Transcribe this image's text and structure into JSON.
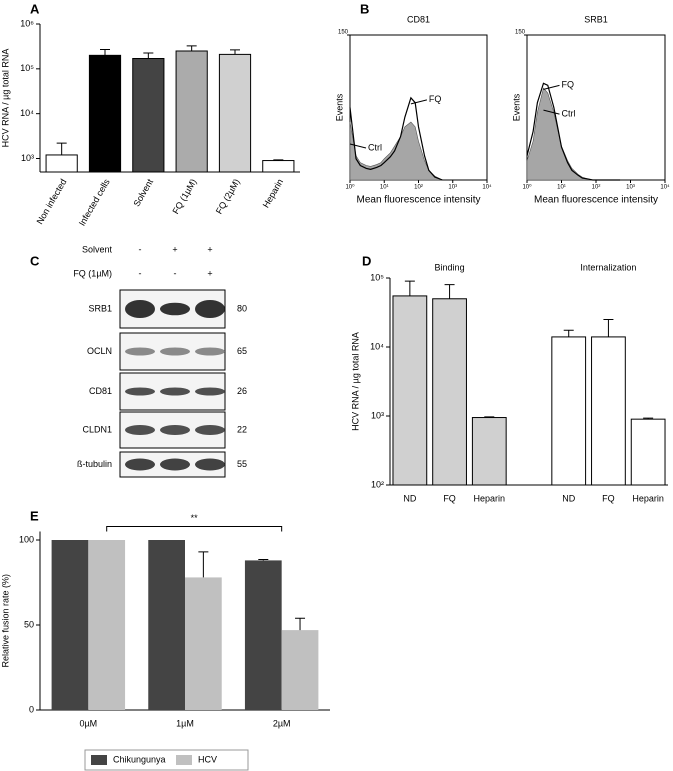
{
  "chart_data": [
    {
      "type": "bar",
      "panel": "A",
      "ylabel": "HCV RNA / µg total RNA",
      "log_y": true,
      "ylim": [
        500,
        1000000
      ],
      "yticks": [
        {
          "value": 1000,
          "label": "10³"
        },
        {
          "value": 10000,
          "label": "10⁴"
        },
        {
          "value": 100000,
          "label": "10⁵"
        },
        {
          "value": 1000000,
          "label": "10⁶"
        }
      ],
      "categories": [
        "Non infected",
        "Infected cells",
        "Solvent",
        "FQ (1µM)",
        "FQ (2µM)",
        "Heparin"
      ],
      "values": [
        1200,
        200000,
        170000,
        250000,
        210000,
        900
      ],
      "errors": [
        1000,
        70000,
        55000,
        75000,
        55000,
        30
      ],
      "colors": [
        "#ffffff",
        "#000000",
        "#444444",
        "#ababab",
        "#d0d0d0",
        "#ffffff"
      ]
    },
    {
      "type": "area",
      "panel": "B",
      "title": "CD81",
      "xlabel": "Mean fluorescence intensity",
      "ylabel": "Events",
      "log_x": true,
      "xlim": [
        1,
        10000
      ],
      "xticks": [
        {
          "value": 1,
          "label": "10⁰"
        },
        {
          "value": 10,
          "label": "10¹"
        },
        {
          "value": 100,
          "label": "10²"
        },
        {
          "value": 1000,
          "label": "10³"
        },
        {
          "value": 10000,
          "label": "10⁴"
        }
      ],
      "ylim": [
        0,
        150
      ],
      "yticks": [
        150
      ],
      "x": [
        1,
        1.5,
        2,
        3,
        4,
        6,
        8,
        10,
        15,
        20,
        30,
        40,
        60,
        80,
        100,
        150,
        200,
        300,
        500
      ],
      "series": [
        {
          "name": "FQ",
          "color": "#000000",
          "values": [
            75,
            22,
            15,
            12,
            11,
            13,
            15,
            18,
            24,
            30,
            45,
            65,
            85,
            80,
            55,
            25,
            10,
            3,
            0
          ]
        },
        {
          "name": "Ctrl",
          "color": "#a6a6a6",
          "fill": true,
          "values": [
            60,
            25,
            18,
            15,
            14,
            16,
            18,
            22,
            28,
            35,
            45,
            55,
            60,
            55,
            40,
            20,
            10,
            4,
            0
          ]
        }
      ]
    },
    {
      "type": "area",
      "title": "SRB1",
      "xlabel": "Mean fluorescence intensity",
      "ylabel": "Events",
      "log_x": true,
      "xlim": [
        1,
        10000
      ],
      "xticks": [
        {
          "value": 1,
          "label": "10⁰"
        },
        {
          "value": 10,
          "label": "10¹"
        },
        {
          "value": 100,
          "label": "10²"
        },
        {
          "value": 1000,
          "label": "10³"
        },
        {
          "value": 10000,
          "label": "10⁴"
        }
      ],
      "ylim": [
        0,
        150
      ],
      "yticks": [
        150
      ],
      "x": [
        1,
        1.5,
        2,
        3,
        4,
        6,
        8,
        10,
        15,
        20,
        30,
        40,
        60,
        80,
        100,
        150,
        200,
        300,
        500
      ],
      "series": [
        {
          "name": "FQ",
          "color": "#000000",
          "values": [
            25,
            50,
            80,
            100,
            98,
            75,
            52,
            34,
            18,
            10,
            5,
            2,
            1,
            0,
            0,
            0,
            0,
            0,
            0
          ]
        },
        {
          "name": "Ctrl",
          "color": "#a6a6a6",
          "fill": true,
          "values": [
            20,
            40,
            70,
            95,
            90,
            70,
            50,
            35,
            20,
            12,
            6,
            3,
            1,
            0,
            0,
            0,
            0,
            0,
            0
          ]
        }
      ]
    },
    {
      "type": "bar",
      "panel": "D",
      "ylabel": "HCV RNA / µg total RNA",
      "log_y": true,
      "ylim": [
        100,
        100000
      ],
      "yticks": [
        {
          "value": 100,
          "label": "10²"
        },
        {
          "value": 1000,
          "label": "10³"
        },
        {
          "value": 10000,
          "label": "10⁴"
        },
        {
          "value": 100000,
          "label": "10⁵"
        }
      ],
      "groups": [
        {
          "name": "Binding",
          "color": "#d0d0d0",
          "categories": [
            "ND",
            "FQ",
            "Heparin"
          ],
          "values": [
            55000,
            50000,
            950
          ],
          "errors": [
            35000,
            30000,
            20
          ]
        },
        {
          "name": "Internalization",
          "color": "#ffffff",
          "categories": [
            "ND",
            "FQ",
            "Heparin"
          ],
          "values": [
            14000,
            14000,
            900
          ],
          "errors": [
            3500,
            11000,
            30
          ]
        }
      ]
    },
    {
      "type": "bar",
      "panel": "E",
      "ylabel": "Relative fusion rate (%)",
      "ylim": [
        0,
        105
      ],
      "yticks": [
        0,
        50,
        100
      ],
      "categories": [
        "0µM",
        "1µM",
        "2µM"
      ],
      "series": [
        {
          "name": "Chikungunya",
          "color": "#444444",
          "values": [
            100,
            100,
            88
          ],
          "errors": [
            0,
            0,
            0.5
          ]
        },
        {
          "name": "HCV",
          "color": "#c0c0c0",
          "values": [
            100,
            78,
            47
          ],
          "errors": [
            0,
            15,
            7
          ]
        }
      ],
      "annotation": "**",
      "legend": "bottom"
    }
  ],
  "blot": {
    "panel": "C",
    "conditions": [
      {
        "label": "Solvent",
        "marks": [
          "-",
          "+",
          "+"
        ]
      },
      {
        "label": "FQ (1µM)",
        "marks": [
          "-",
          "-",
          "+"
        ]
      }
    ],
    "rows": [
      {
        "protein": "SRB1",
        "kda": 80
      },
      {
        "protein": "OCLN",
        "kda": 65
      },
      {
        "protein": "CD81",
        "kda": 26
      },
      {
        "protein": "CLDN1",
        "kda": 22
      },
      {
        "protein": "ß-tubulin",
        "kda": 55
      }
    ]
  }
}
